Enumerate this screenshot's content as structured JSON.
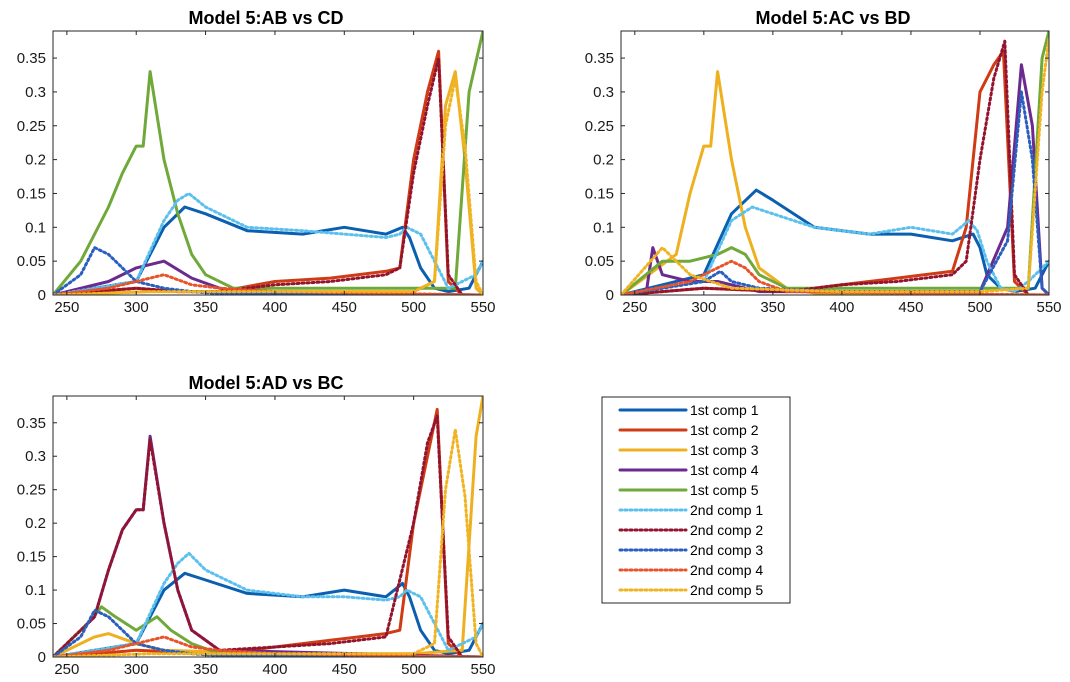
{
  "colors": {
    "1st comp 1": "#0b5fb0",
    "1st comp 2": "#cf3b14",
    "1st comp 3": "#eeb020",
    "1st comp 4": "#6b2a8f",
    "1st comp 5": "#70a83a",
    "2nd comp 1": "#5cc0ee",
    "2nd comp 2": "#94132d",
    "2nd comp 3": "#2a5ebf",
    "2nd comp 4": "#e8542a",
    "2nd comp 5": "#f0b322"
  },
  "legend": {
    "items": [
      "1st comp 1",
      "1st comp 2",
      "1st comp 3",
      "1st comp 4",
      "1st comp 5",
      "2nd comp 1",
      "2nd comp 2",
      "2nd comp 3",
      "2nd comp 4",
      "2nd comp 5"
    ],
    "solid": [
      "1st comp 1",
      "1st comp 2",
      "1st comp 3",
      "1st comp 4",
      "1st comp 5"
    ],
    "dotted": [
      "2nd comp 1",
      "2nd comp 2",
      "2nd comp 3",
      "2nd comp 4",
      "2nd comp 5"
    ]
  },
  "chart_data": [
    {
      "type": "line",
      "title": "Model 5:AB vs CD",
      "xlim": [
        240,
        550
      ],
      "ylim": [
        0,
        0.39
      ],
      "xticks": [
        "250",
        "300",
        "350",
        "400",
        "450",
        "500",
        "550"
      ],
      "yticks": [
        "0",
        "0.05",
        "0.1",
        "0.15",
        "0.2",
        "0.25",
        "0.3",
        "0.35"
      ],
      "series": [
        {
          "name": "1st comp 1",
          "x": [
            240,
            300,
            320,
            335,
            350,
            380,
            420,
            450,
            480,
            492,
            497,
            505,
            515,
            525,
            540,
            550
          ],
          "y": [
            0,
            0.02,
            0.1,
            0.13,
            0.12,
            0.095,
            0.09,
            0.1,
            0.09,
            0.1,
            0.085,
            0.04,
            0.01,
            0.005,
            0.01,
            0.05
          ]
        },
        {
          "name": "1st comp 2",
          "x": [
            240,
            300,
            330,
            360,
            400,
            440,
            480,
            490,
            500,
            510,
            518,
            525,
            535,
            550
          ],
          "y": [
            0,
            0.01,
            0.005,
            0.005,
            0.02,
            0.025,
            0.035,
            0.04,
            0.2,
            0.3,
            0.36,
            0.02,
            0,
            0
          ]
        },
        {
          "name": "1st comp 3",
          "x": [
            240,
            310,
            340,
            400,
            500,
            515,
            523,
            530,
            537,
            545,
            550
          ],
          "y": [
            0,
            0.005,
            0.005,
            0.005,
            0.005,
            0.02,
            0.28,
            0.33,
            0.2,
            0.01,
            0
          ]
        },
        {
          "name": "1st comp 4",
          "x": [
            240,
            280,
            300,
            320,
            340,
            360,
            380,
            550
          ],
          "y": [
            0,
            0.02,
            0.04,
            0.05,
            0.025,
            0.01,
            0.003,
            0
          ]
        },
        {
          "name": "1st comp 5",
          "x": [
            240,
            260,
            280,
            290,
            300,
            305,
            310,
            320,
            330,
            340,
            350,
            370,
            500,
            530,
            540,
            550
          ],
          "y": [
            0,
            0.05,
            0.13,
            0.18,
            0.22,
            0.22,
            0.33,
            0.2,
            0.12,
            0.06,
            0.03,
            0.01,
            0.01,
            0.01,
            0.3,
            0.39
          ]
        },
        {
          "name": "2nd comp 1",
          "x": [
            240,
            300,
            320,
            330,
            338,
            350,
            380,
            420,
            450,
            480,
            490,
            495,
            505,
            515,
            525,
            535,
            545,
            550
          ],
          "y": [
            0,
            0.02,
            0.11,
            0.14,
            0.15,
            0.13,
            0.1,
            0.095,
            0.09,
            0.085,
            0.09,
            0.1,
            0.09,
            0.05,
            0.01,
            0.02,
            0.03,
            0.05
          ]
        },
        {
          "name": "2nd comp 2",
          "x": [
            240,
            300,
            330,
            360,
            400,
            440,
            480,
            490,
            500,
            510,
            518,
            525,
            535,
            550
          ],
          "y": [
            0,
            0.01,
            0.005,
            0.005,
            0.015,
            0.02,
            0.03,
            0.04,
            0.18,
            0.28,
            0.35,
            0.03,
            0,
            0
          ]
        },
        {
          "name": "2nd comp 3",
          "x": [
            240,
            260,
            270,
            280,
            290,
            300,
            320,
            340,
            360,
            550
          ],
          "y": [
            0,
            0.03,
            0.07,
            0.06,
            0.04,
            0.02,
            0.01,
            0.005,
            0.002,
            0
          ]
        },
        {
          "name": "2nd comp 4",
          "x": [
            240,
            280,
            300,
            320,
            340,
            360,
            400,
            550
          ],
          "y": [
            0,
            0.01,
            0.02,
            0.03,
            0.015,
            0.01,
            0.005,
            0
          ]
        },
        {
          "name": "2nd comp 5",
          "x": [
            240,
            310,
            400,
            500,
            515,
            523,
            530,
            537,
            545,
            550
          ],
          "y": [
            0,
            0.005,
            0.005,
            0.005,
            0.02,
            0.25,
            0.32,
            0.22,
            0.02,
            0
          ]
        }
      ]
    },
    {
      "type": "line",
      "title": "Model 5:AC vs BD",
      "xlim": [
        240,
        550
      ],
      "ylim": [
        0,
        0.39
      ],
      "xticks": [
        "250",
        "300",
        "350",
        "400",
        "450",
        "500",
        "550"
      ],
      "yticks": [
        "0",
        "0.05",
        "0.1",
        "0.15",
        "0.2",
        "0.25",
        "0.3",
        "0.35"
      ],
      "series": [
        {
          "name": "1st comp 1",
          "x": [
            240,
            300,
            320,
            338,
            350,
            380,
            420,
            450,
            480,
            495,
            500,
            505,
            515,
            525,
            540,
            550
          ],
          "y": [
            0,
            0.03,
            0.12,
            0.155,
            0.14,
            0.1,
            0.09,
            0.09,
            0.08,
            0.09,
            0.07,
            0.03,
            0.01,
            0.005,
            0.01,
            0.05
          ]
        },
        {
          "name": "1st comp 2",
          "x": [
            240,
            300,
            360,
            400,
            440,
            480,
            490,
            500,
            510,
            517,
            525,
            535,
            550
          ],
          "y": [
            0,
            0.01,
            0.005,
            0.015,
            0.025,
            0.035,
            0.1,
            0.3,
            0.34,
            0.36,
            0.02,
            0,
            0
          ]
        },
        {
          "name": "1st comp 3",
          "x": [
            240,
            280,
            290,
            300,
            305,
            310,
            320,
            330,
            340,
            360,
            380,
            550
          ],
          "y": [
            0,
            0.06,
            0.15,
            0.22,
            0.22,
            0.33,
            0.2,
            0.1,
            0.04,
            0.01,
            0.003,
            0
          ]
        },
        {
          "name": "1st comp 4",
          "x": [
            240,
            258,
            263,
            270,
            290,
            310,
            340,
            400,
            500,
            520,
            530,
            538,
            545,
            550
          ],
          "y": [
            0,
            0,
            0.07,
            0.03,
            0.02,
            0.02,
            0.005,
            0.005,
            0.005,
            0.1,
            0.34,
            0.25,
            0.01,
            0
          ]
        },
        {
          "name": "1st comp 5",
          "x": [
            240,
            270,
            290,
            310,
            320,
            330,
            340,
            360,
            500,
            535,
            545,
            550
          ],
          "y": [
            0,
            0.05,
            0.05,
            0.06,
            0.07,
            0.06,
            0.03,
            0.01,
            0.01,
            0.01,
            0.35,
            0.39
          ]
        },
        {
          "name": "2nd comp 1",
          "x": [
            240,
            300,
            320,
            335,
            350,
            380,
            420,
            450,
            480,
            492,
            498,
            505,
            515,
            525,
            535,
            550
          ],
          "y": [
            0,
            0.02,
            0.11,
            0.13,
            0.12,
            0.1,
            0.09,
            0.1,
            0.09,
            0.11,
            0.095,
            0.05,
            0.01,
            0.005,
            0.02,
            0.05
          ]
        },
        {
          "name": "2nd comp 2",
          "x": [
            240,
            300,
            360,
            400,
            440,
            480,
            490,
            500,
            510,
            518,
            525,
            535,
            550
          ],
          "y": [
            0,
            0.01,
            0.005,
            0.015,
            0.02,
            0.03,
            0.05,
            0.2,
            0.32,
            0.375,
            0.03,
            0,
            0
          ]
        },
        {
          "name": "2nd comp 3",
          "x": [
            240,
            300,
            312,
            320,
            340,
            400,
            500,
            520,
            530,
            538,
            545,
            550
          ],
          "y": [
            0,
            0.02,
            0.035,
            0.02,
            0.01,
            0.005,
            0.005,
            0.08,
            0.3,
            0.2,
            0.01,
            0
          ]
        },
        {
          "name": "2nd comp 4",
          "x": [
            240,
            290,
            310,
            320,
            330,
            340,
            360,
            550
          ],
          "y": [
            0,
            0.02,
            0.04,
            0.05,
            0.04,
            0.02,
            0.005,
            0
          ]
        },
        {
          "name": "2nd comp 5",
          "x": [
            240,
            270,
            290,
            320,
            400,
            500,
            535,
            545,
            550
          ],
          "y": [
            0,
            0.07,
            0.03,
            0.01,
            0.005,
            0.005,
            0.01,
            0.3,
            0.38
          ]
        }
      ]
    },
    {
      "type": "line",
      "title": "Model 5:AD vs BC",
      "xlim": [
        240,
        550
      ],
      "ylim": [
        0,
        0.39
      ],
      "xticks": [
        "250",
        "300",
        "350",
        "400",
        "450",
        "500",
        "550"
      ],
      "yticks": [
        "0",
        "0.05",
        "0.1",
        "0.15",
        "0.2",
        "0.25",
        "0.3",
        "0.35"
      ],
      "series": [
        {
          "name": "1st comp 1",
          "x": [
            240,
            300,
            320,
            335,
            350,
            380,
            420,
            450,
            480,
            492,
            497,
            505,
            515,
            525,
            540,
            550
          ],
          "y": [
            0,
            0.02,
            0.1,
            0.125,
            0.115,
            0.095,
            0.09,
            0.1,
            0.09,
            0.11,
            0.09,
            0.04,
            0.01,
            0.005,
            0.01,
            0.05
          ]
        },
        {
          "name": "1st comp 2",
          "x": [
            240,
            300,
            360,
            400,
            440,
            480,
            490,
            500,
            510,
            517,
            525,
            535,
            550
          ],
          "y": [
            0,
            0.01,
            0.005,
            0.015,
            0.025,
            0.035,
            0.04,
            0.2,
            0.3,
            0.37,
            0.02,
            0,
            0
          ]
        },
        {
          "name": "1st comp 3",
          "x": [
            240,
            270,
            280,
            300,
            320,
            400,
            500,
            535,
            545,
            550
          ],
          "y": [
            0,
            0.03,
            0.035,
            0.02,
            0.01,
            0.005,
            0.005,
            0.01,
            0.33,
            0.39
          ]
        },
        {
          "name": "1st comp 4",
          "x": [
            240,
            270,
            280,
            290,
            300,
            305,
            310,
            320,
            330,
            340,
            360,
            550
          ],
          "y": [
            0,
            0.06,
            0.13,
            0.19,
            0.22,
            0.22,
            0.33,
            0.2,
            0.1,
            0.04,
            0.01,
            0
          ]
        },
        {
          "name": "1st comp 5",
          "x": [
            240,
            265,
            275,
            285,
            300,
            315,
            325,
            340,
            360,
            550
          ],
          "y": [
            0,
            0.05,
            0.075,
            0.06,
            0.04,
            0.06,
            0.04,
            0.02,
            0.005,
            0
          ]
        },
        {
          "name": "2nd comp 1",
          "x": [
            240,
            300,
            320,
            330,
            338,
            350,
            380,
            420,
            450,
            480,
            490,
            495,
            505,
            515,
            525,
            535,
            545,
            550
          ],
          "y": [
            0,
            0.02,
            0.11,
            0.14,
            0.155,
            0.13,
            0.1,
            0.09,
            0.09,
            0.085,
            0.09,
            0.1,
            0.09,
            0.05,
            0.01,
            0.02,
            0.03,
            0.05
          ]
        },
        {
          "name": "2nd comp 2",
          "x": [
            240,
            270,
            280,
            290,
            300,
            305,
            310,
            320,
            330,
            340,
            360,
            400,
            440,
            480,
            500,
            510,
            517,
            525,
            535,
            550
          ],
          "y": [
            0,
            0.06,
            0.13,
            0.19,
            0.22,
            0.22,
            0.325,
            0.2,
            0.1,
            0.04,
            0.01,
            0.015,
            0.02,
            0.03,
            0.2,
            0.32,
            0.36,
            0.03,
            0,
            0
          ]
        },
        {
          "name": "2nd comp 3",
          "x": [
            240,
            260,
            270,
            280,
            290,
            300,
            320,
            340,
            360,
            550
          ],
          "y": [
            0,
            0.03,
            0.07,
            0.06,
            0.04,
            0.02,
            0.01,
            0.005,
            0.002,
            0
          ]
        },
        {
          "name": "2nd comp 4",
          "x": [
            240,
            280,
            300,
            320,
            340,
            360,
            400,
            550
          ],
          "y": [
            0,
            0.01,
            0.02,
            0.03,
            0.015,
            0.01,
            0.005,
            0
          ]
        },
        {
          "name": "2nd comp 5",
          "x": [
            240,
            310,
            400,
            500,
            515,
            523,
            530,
            537,
            545,
            550
          ],
          "y": [
            0,
            0.005,
            0.005,
            0.005,
            0.02,
            0.25,
            0.34,
            0.24,
            0.02,
            0
          ]
        }
      ]
    }
  ]
}
